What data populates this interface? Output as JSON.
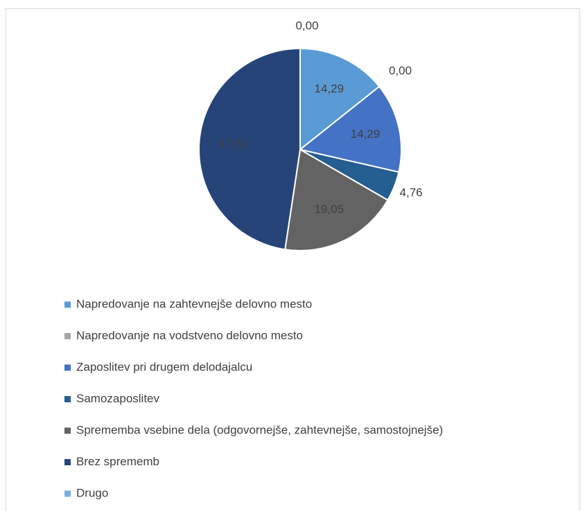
{
  "chart_data": {
    "type": "pie",
    "categories": [
      "Napredovanje na zahtevnejše delovno mesto",
      "Napredovanje na vodstveno delovno mesto",
      "Zaposlitev pri drugem delodajalcu",
      "Samozaposlitev",
      "Sprememba vsebine dela (odgovornejše, zahtevnejše, samostojnejše)",
      "Brez sprememb",
      "Drugo"
    ],
    "values": [
      14.29,
      0,
      14.29,
      4.76,
      19.05,
      47.62,
      0
    ],
    "value_labels": [
      "14,29",
      "0,00",
      "14,29",
      "4,76",
      "19,05",
      "47,62",
      "0,00"
    ],
    "colors": [
      "#5b9bd5",
      "#a5a5a5",
      "#4472c4",
      "#255e91",
      "#636363",
      "#264478",
      "#7cafdd"
    ],
    "legend": "bottom"
  }
}
